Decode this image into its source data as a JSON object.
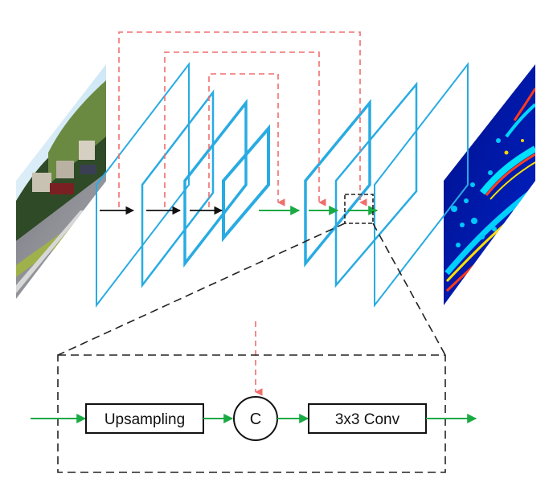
{
  "colors": {
    "layer_outline": "#29abe2",
    "skip_connection": "#f06e6e",
    "encoder_arrow": "#111111",
    "decoder_arrow": "#1aaa44",
    "detail_box": "#222222"
  },
  "detail": {
    "upsampling_label": "Upsampling",
    "concat_label": "C",
    "conv_label": "3x3 Conv"
  }
}
